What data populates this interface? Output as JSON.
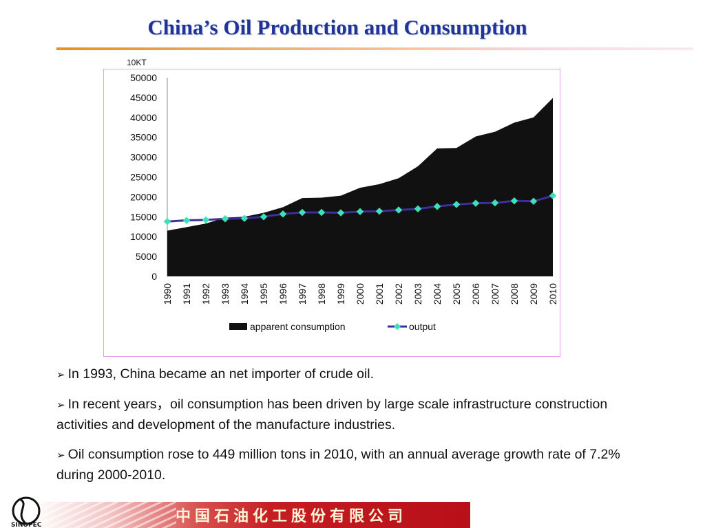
{
  "slide": {
    "title": "China’s Oil Production and Consumption",
    "bullets": [
      "In 1993, China became an net importer of crude oil.",
      "In recent years，oil consumption has been driven by large scale infrastructure construction activities and development  of the manufacture industries.",
      "Oil consumption rose to 449 million tons in 2010, with an annual average growth rate of 7.2% during 2000-2010."
    ],
    "footer_company": "中国石油化工股份有限公司",
    "logo_text": "SINOPEC",
    "colors": {
      "title": "#1f3399",
      "frame": "#ea9fe6",
      "area": "#111111",
      "line": "#3b2f9e",
      "marker": "#3ee0b8",
      "footer": "#c41d22"
    }
  },
  "chart_data": {
    "type": "area",
    "unit_label": "10KT",
    "x": [
      "1990",
      "1991",
      "1992",
      "1993",
      "1994",
      "1995",
      "1996",
      "1997",
      "1998",
      "1999",
      "2000",
      "2001",
      "2002",
      "2003",
      "2004",
      "2005",
      "2006",
      "2007",
      "2008",
      "2009",
      "2010"
    ],
    "ylim": [
      0,
      50000
    ],
    "yticks": [
      0,
      5000,
      10000,
      15000,
      20000,
      25000,
      30000,
      35000,
      40000,
      45000,
      50000
    ],
    "series": [
      {
        "name": "apparent consumption",
        "type": "area",
        "values": [
          11500,
          12400,
          13300,
          14800,
          15000,
          16000,
          17400,
          19700,
          19800,
          20300,
          22300,
          23200,
          24700,
          27700,
          32200,
          32300,
          35200,
          36400,
          38700,
          40000,
          44900
        ]
      },
      {
        "name": "output",
        "type": "line",
        "values": [
          13800,
          14100,
          14200,
          14500,
          14600,
          15000,
          15700,
          16100,
          16100,
          16000,
          16300,
          16400,
          16700,
          17000,
          17600,
          18100,
          18400,
          18500,
          19000,
          18900,
          20300
        ]
      }
    ],
    "legend_position": "bottom",
    "grid": false
  }
}
